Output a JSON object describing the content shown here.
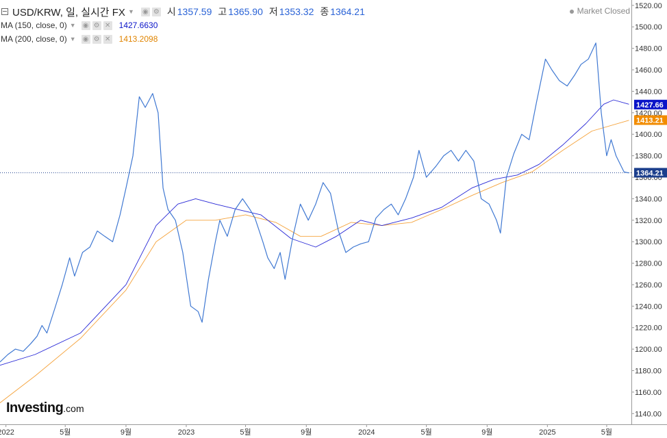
{
  "header": {
    "symbol_title": "USD/KRW, 일, 실시간 FX",
    "open_label": "시",
    "open_value": "1357.59",
    "high_label": "고",
    "high_value": "1365.90",
    "low_label": "저",
    "low_value": "1353.32",
    "close_label": "종",
    "close_value": "1364.21",
    "status_text": "Market Closed"
  },
  "indicators": [
    {
      "label": "MA (150, close, 0)",
      "value": "1427.6630",
      "color": "#0a14c8"
    },
    {
      "label": "MA (200, close, 0)",
      "value": "1413.2098",
      "color": "#f28c00"
    }
  ],
  "logo": {
    "brand": "Investing",
    "suffix": ".com"
  },
  "colors": {
    "price_line": "#3f78d2",
    "ma150": "#2626d6",
    "ma200": "#f5a23a",
    "last_price_line": "#1c3f8c"
  },
  "chart_data": {
    "type": "line",
    "ylim": [
      1130,
      1525
    ],
    "y_ticks": [
      "1140.00",
      "1160.00",
      "1180.00",
      "1200.00",
      "1220.00",
      "1240.00",
      "1260.00",
      "1280.00",
      "1300.00",
      "1320.00",
      "1340.00",
      "1360.00",
      "1380.00",
      "1400.00",
      "1420.00",
      "1440.00",
      "1460.00",
      "1480.00",
      "1500.00",
      "1520.00"
    ],
    "x_ticks": [
      {
        "label": "2022",
        "date": "2022-01-01"
      },
      {
        "label": "5월",
        "date": "2022-05-01"
      },
      {
        "label": "9월",
        "date": "2022-09-01"
      },
      {
        "label": "2023",
        "date": "2023-01-01"
      },
      {
        "label": "5월",
        "date": "2023-05-01"
      },
      {
        "label": "9월",
        "date": "2023-09-01"
      },
      {
        "label": "2024",
        "date": "2024-01-01"
      },
      {
        "label": "5월",
        "date": "2024-05-01"
      },
      {
        "label": "9월",
        "date": "2024-09-01"
      },
      {
        "label": "2025",
        "date": "2025-01-01"
      },
      {
        "label": "5월",
        "date": "2025-05-01"
      }
    ],
    "x_range": [
      "2021-12-20",
      "2025-06-20"
    ],
    "price_labels": [
      {
        "text": "1427.66",
        "value": 1427.66,
        "color": "#0a14c8"
      },
      {
        "text": "1413.21",
        "value": 1413.21,
        "color": "#f28c00"
      },
      {
        "text": "1364.21",
        "value": 1364.21,
        "color": "#1c3f8c"
      }
    ],
    "series": [
      {
        "name": "USD/KRW",
        "x": [
          "2021-12-20",
          "2022-01-05",
          "2022-01-20",
          "2022-02-05",
          "2022-02-20",
          "2022-03-05",
          "2022-03-15",
          "2022-03-25",
          "2022-04-10",
          "2022-04-25",
          "2022-05-10",
          "2022-05-20",
          "2022-06-05",
          "2022-06-20",
          "2022-07-05",
          "2022-07-20",
          "2022-08-05",
          "2022-08-20",
          "2022-09-01",
          "2022-09-15",
          "2022-09-28",
          "2022-10-10",
          "2022-10-25",
          "2022-11-05",
          "2022-11-15",
          "2022-11-25",
          "2022-12-10",
          "2022-12-25",
          "2023-01-10",
          "2023-01-25",
          "2023-02-02",
          "2023-02-15",
          "2023-03-01",
          "2023-03-10",
          "2023-03-25",
          "2023-04-10",
          "2023-04-25",
          "2023-05-10",
          "2023-05-20",
          "2023-06-05",
          "2023-06-15",
          "2023-06-28",
          "2023-07-10",
          "2023-07-20",
          "2023-08-05",
          "2023-08-20",
          "2023-09-05",
          "2023-09-20",
          "2023-10-05",
          "2023-10-20",
          "2023-11-05",
          "2023-11-20",
          "2023-12-05",
          "2023-12-20",
          "2024-01-05",
          "2024-01-20",
          "2024-02-05",
          "2024-02-20",
          "2024-03-05",
          "2024-03-20",
          "2024-04-05",
          "2024-04-16",
          "2024-05-01",
          "2024-05-20",
          "2024-06-05",
          "2024-06-20",
          "2024-07-05",
          "2024-07-20",
          "2024-08-05",
          "2024-08-20",
          "2024-09-05",
          "2024-09-20",
          "2024-09-28",
          "2024-10-10",
          "2024-10-25",
          "2024-11-10",
          "2024-11-25",
          "2024-12-10",
          "2024-12-28",
          "2025-01-10",
          "2025-01-25",
          "2025-02-10",
          "2025-02-25",
          "2025-03-10",
          "2025-03-25",
          "2025-04-09",
          "2025-04-20",
          "2025-05-01",
          "2025-05-10",
          "2025-05-20",
          "2025-06-05",
          "2025-06-15"
        ],
        "values": [
          1188,
          1195,
          1200,
          1198,
          1205,
          1212,
          1222,
          1215,
          1238,
          1260,
          1285,
          1268,
          1290,
          1295,
          1310,
          1305,
          1300,
          1325,
          1350,
          1380,
          1435,
          1425,
          1438,
          1420,
          1350,
          1330,
          1320,
          1290,
          1240,
          1235,
          1225,
          1265,
          1300,
          1320,
          1305,
          1330,
          1340,
          1330,
          1322,
          1300,
          1285,
          1275,
          1290,
          1265,
          1305,
          1335,
          1320,
          1335,
          1355,
          1345,
          1310,
          1290,
          1295,
          1298,
          1300,
          1322,
          1330,
          1335,
          1325,
          1340,
          1360,
          1385,
          1360,
          1370,
          1380,
          1385,
          1375,
          1385,
          1375,
          1340,
          1335,
          1320,
          1308,
          1360,
          1382,
          1400,
          1395,
          1430,
          1470,
          1460,
          1450,
          1445,
          1455,
          1465,
          1470,
          1485,
          1420,
          1380,
          1395,
          1380,
          1365,
          1364
        ]
      },
      {
        "name": "MA (150, close, 0)",
        "x": [
          "2021-12-20",
          "2022-03-01",
          "2022-06-01",
          "2022-09-01",
          "2022-11-01",
          "2022-12-15",
          "2023-01-20",
          "2023-03-01",
          "2023-04-15",
          "2023-06-01",
          "2023-08-01",
          "2023-09-20",
          "2023-11-01",
          "2023-12-20",
          "2024-02-01",
          "2024-04-01",
          "2024-06-01",
          "2024-08-01",
          "2024-09-15",
          "2024-11-01",
          "2024-12-15",
          "2025-02-01",
          "2025-03-20",
          "2025-04-25",
          "2025-05-15",
          "2025-06-15"
        ],
        "values": [
          1185,
          1195,
          1215,
          1260,
          1315,
          1335,
          1340,
          1335,
          1330,
          1325,
          1303,
          1295,
          1305,
          1320,
          1315,
          1322,
          1332,
          1350,
          1358,
          1362,
          1372,
          1390,
          1410,
          1428,
          1432,
          1428
        ]
      },
      {
        "name": "MA (200, close, 0)",
        "x": [
          "2021-12-20",
          "2022-03-01",
          "2022-06-01",
          "2022-09-01",
          "2022-11-01",
          "2023-01-01",
          "2023-03-01",
          "2023-05-01",
          "2023-07-01",
          "2023-08-20",
          "2023-10-01",
          "2023-12-01",
          "2024-02-01",
          "2024-04-01",
          "2024-06-01",
          "2024-08-01",
          "2024-10-01",
          "2024-12-01",
          "2025-02-01",
          "2025-04-01",
          "2025-06-15"
        ],
        "values": [
          1150,
          1175,
          1210,
          1255,
          1300,
          1320,
          1320,
          1325,
          1318,
          1305,
          1305,
          1318,
          1315,
          1318,
          1330,
          1343,
          1355,
          1365,
          1385,
          1403,
          1413
        ]
      }
    ]
  }
}
